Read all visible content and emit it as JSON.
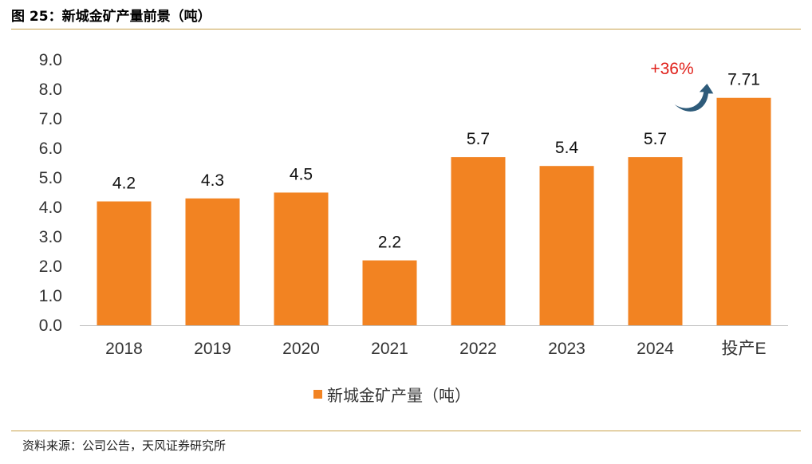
{
  "figure": {
    "title": "图 25：新城金矿产量前景（吨）",
    "source": "资料来源：公司公告，天风证券研究所"
  },
  "colors": {
    "bar": "#f28322",
    "rule": "#c8a14a",
    "annotation": "#e0201a",
    "arrow": "#2e5b7a"
  },
  "chart_data": {
    "type": "bar",
    "title": "",
    "categories": [
      "2018",
      "2019",
      "2020",
      "2021",
      "2022",
      "2023",
      "2024",
      "投产E"
    ],
    "series": [
      {
        "name": "新城金矿产量（吨）",
        "values": [
          4.2,
          4.3,
          4.5,
          2.2,
          5.7,
          5.4,
          5.7,
          7.71
        ]
      }
    ],
    "data_labels": [
      "4.2",
      "4.3",
      "4.5",
      "2.2",
      "5.7",
      "5.4",
      "5.7",
      "7.71"
    ],
    "y_ticks": [
      "0.0",
      "1.0",
      "2.0",
      "3.0",
      "4.0",
      "5.0",
      "6.0",
      "7.0",
      "8.0",
      "9.0"
    ],
    "ylim": [
      0,
      9
    ],
    "xlabel": "",
    "ylabel": "",
    "grid": false,
    "legend": "bottom-center",
    "annotation": {
      "text": "+36%",
      "icon": "curved-up-arrow-icon"
    }
  }
}
